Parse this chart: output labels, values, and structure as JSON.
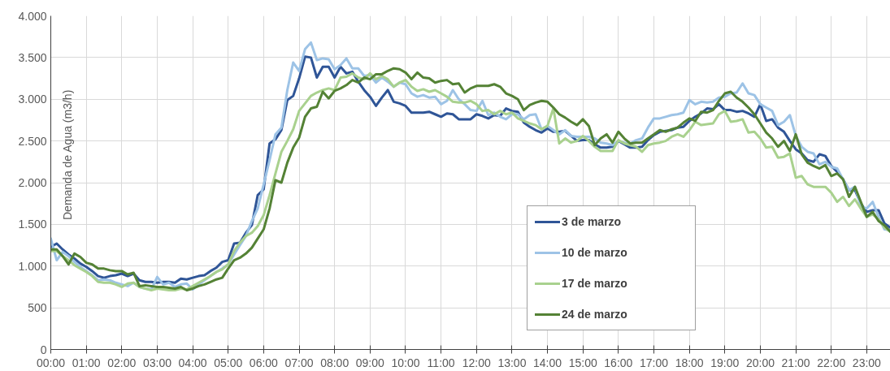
{
  "chart_data": {
    "type": "line",
    "ylabel": "Demanda de Agua (m3/h)",
    "x": [
      0,
      0.167,
      0.333,
      0.5,
      0.667,
      0.833,
      1,
      1.167,
      1.333,
      1.5,
      1.667,
      1.833,
      2,
      2.167,
      2.333,
      2.5,
      2.667,
      2.833,
      3,
      3.167,
      3.333,
      3.5,
      3.667,
      3.833,
      4,
      4.167,
      4.333,
      4.5,
      4.667,
      4.833,
      5,
      5.167,
      5.333,
      5.5,
      5.667,
      5.833,
      6,
      6.167,
      6.333,
      6.5,
      6.667,
      6.833,
      7,
      7.167,
      7.333,
      7.5,
      7.667,
      7.833,
      8,
      8.167,
      8.333,
      8.5,
      8.667,
      8.833,
      9,
      9.167,
      9.333,
      9.5,
      9.667,
      9.833,
      10,
      10.167,
      10.333,
      10.5,
      10.667,
      10.833,
      11,
      11.167,
      11.333,
      11.5,
      11.667,
      11.833,
      12,
      12.167,
      12.333,
      12.5,
      12.667,
      12.833,
      13,
      13.167,
      13.333,
      13.5,
      13.667,
      13.833,
      14,
      14.167,
      14.333,
      14.5,
      14.667,
      14.833,
      15,
      15.167,
      15.333,
      15.5,
      15.667,
      15.833,
      16,
      16.167,
      16.333,
      16.5,
      16.667,
      16.833,
      17,
      17.167,
      17.333,
      17.5,
      17.667,
      17.833,
      18,
      18.167,
      18.333,
      18.5,
      18.667,
      18.833,
      19,
      19.167,
      19.333,
      19.5,
      19.667,
      19.833,
      20,
      20.167,
      20.333,
      20.5,
      20.667,
      20.833,
      21,
      21.167,
      21.333,
      21.5,
      21.667,
      21.833,
      22,
      22.167,
      22.333,
      22.5,
      22.667,
      22.833,
      23,
      23.167,
      23.333,
      23.5,
      23.667
    ],
    "series": [
      {
        "name": "3 de marzo",
        "color": "#2f5597",
        "values": [
          1230,
          1270,
          1200,
          1140,
          1090,
          1030,
          990,
          940,
          880,
          860,
          880,
          890,
          910,
          880,
          910,
          830,
          810,
          810,
          800,
          810,
          810,
          800,
          850,
          840,
          860,
          880,
          890,
          940,
          980,
          1050,
          1070,
          1270,
          1280,
          1400,
          1490,
          1850,
          1920,
          2470,
          2520,
          2630,
          2990,
          3040,
          3250,
          3510,
          3500,
          3260,
          3390,
          3390,
          3260,
          3390,
          3310,
          3330,
          3210,
          3110,
          3030,
          2920,
          3020,
          3110,
          2970,
          2950,
          2920,
          2840,
          2840,
          2840,
          2850,
          2820,
          2790,
          2830,
          2820,
          2760,
          2760,
          2760,
          2820,
          2800,
          2770,
          2810,
          2800,
          2890,
          2860,
          2850,
          2720,
          2670,
          2630,
          2600,
          2650,
          2610,
          2610,
          2620,
          2560,
          2500,
          2510,
          2510,
          2460,
          2420,
          2420,
          2430,
          2500,
          2460,
          2420,
          2420,
          2430,
          2510,
          2570,
          2610,
          2620,
          2630,
          2660,
          2670,
          2740,
          2790,
          2830,
          2890,
          2880,
          2940,
          2870,
          2870,
          2850,
          2860,
          2830,
          2790,
          2940,
          2740,
          2760,
          2660,
          2610,
          2500,
          2400,
          2350,
          2270,
          2250,
          2340,
          2320,
          2200,
          2130,
          2040,
          1910,
          1910,
          1750,
          1650,
          1670,
          1670,
          1510,
          1460
        ]
      },
      {
        "name": "10 de marzo",
        "color": "#9dc3e6",
        "values": [
          1330,
          1070,
          1170,
          1120,
          1050,
          990,
          940,
          890,
          830,
          840,
          830,
          800,
          780,
          760,
          800,
          750,
          730,
          720,
          870,
          780,
          800,
          750,
          780,
          790,
          720,
          780,
          830,
          880,
          930,
          970,
          1020,
          1140,
          1250,
          1360,
          1540,
          1690,
          1980,
          2270,
          2580,
          2660,
          3110,
          3440,
          3340,
          3600,
          3680,
          3470,
          3490,
          3480,
          3360,
          3410,
          3490,
          3370,
          3370,
          3280,
          3290,
          3200,
          3260,
          3210,
          3150,
          3200,
          3180,
          3070,
          3030,
          3050,
          3020,
          3030,
          2940,
          2980,
          3110,
          3000,
          2940,
          2870,
          2860,
          2980,
          2810,
          2840,
          2790,
          2760,
          2820,
          2820,
          2760,
          2810,
          2820,
          2640,
          2680,
          2630,
          2580,
          2630,
          2560,
          2550,
          2550,
          2550,
          2530,
          2480,
          2470,
          2450,
          2500,
          2480,
          2470,
          2510,
          2530,
          2660,
          2770,
          2770,
          2790,
          2810,
          2820,
          2840,
          2990,
          2940,
          2970,
          2960,
          2970,
          3020,
          3030,
          3070,
          3080,
          3190,
          3070,
          3050,
          2940,
          2900,
          2860,
          2690,
          2730,
          2810,
          2560,
          2430,
          2370,
          2350,
          2220,
          2250,
          2190,
          2170,
          2040,
          1910,
          1950,
          1720,
          1690,
          1770,
          1590,
          1440,
          1430
        ]
      },
      {
        "name": "17 de marzo",
        "color": "#a9d18e",
        "values": [
          1180,
          1180,
          1120,
          1070,
          1010,
          970,
          930,
          880,
          810,
          800,
          800,
          780,
          750,
          790,
          800,
          750,
          730,
          710,
          730,
          720,
          710,
          710,
          730,
          720,
          760,
          800,
          840,
          880,
          930,
          960,
          1020,
          1180,
          1280,
          1360,
          1400,
          1480,
          1610,
          1850,
          2110,
          2370,
          2500,
          2640,
          2860,
          2950,
          3040,
          3080,
          3110,
          3130,
          3110,
          3260,
          3270,
          3310,
          3260,
          3240,
          3310,
          3240,
          3280,
          3240,
          3150,
          3200,
          3230,
          3150,
          3100,
          3120,
          3090,
          3110,
          3070,
          3030,
          2970,
          2960,
          2960,
          2980,
          2940,
          2860,
          2870,
          2820,
          2860,
          2820,
          2840,
          2770,
          2740,
          2710,
          2690,
          2640,
          2680,
          2890,
          2470,
          2530,
          2480,
          2500,
          2560,
          2500,
          2430,
          2380,
          2380,
          2380,
          2510,
          2470,
          2450,
          2430,
          2370,
          2450,
          2470,
          2480,
          2500,
          2550,
          2580,
          2550,
          2630,
          2730,
          2690,
          2700,
          2710,
          2820,
          2860,
          2730,
          2740,
          2760,
          2600,
          2610,
          2530,
          2420,
          2430,
          2300,
          2310,
          2350,
          2060,
          2080,
          1980,
          1950,
          1950,
          1950,
          1880,
          1770,
          1830,
          1720,
          1800,
          1690,
          1590,
          1620,
          1560,
          1460,
          1410
        ]
      },
      {
        "name": "24 de marzo",
        "color": "#548235",
        "values": [
          1200,
          1200,
          1120,
          1020,
          1150,
          1110,
          1040,
          1020,
          970,
          970,
          950,
          940,
          940,
          900,
          920,
          760,
          770,
          760,
          750,
          750,
          740,
          730,
          750,
          710,
          730,
          760,
          780,
          810,
          840,
          860,
          970,
          1070,
          1100,
          1150,
          1220,
          1330,
          1440,
          1690,
          2030,
          2000,
          2240,
          2420,
          2540,
          2790,
          2890,
          2910,
          3090,
          3010,
          3100,
          3130,
          3170,
          3230,
          3200,
          3260,
          3240,
          3300,
          3300,
          3340,
          3370,
          3360,
          3320,
          3240,
          3320,
          3260,
          3250,
          3200,
          3220,
          3230,
          3180,
          3190,
          3080,
          3130,
          3160,
          3160,
          3160,
          3180,
          3150,
          3070,
          3040,
          3000,
          2870,
          2930,
          2960,
          2980,
          2970,
          2900,
          2820,
          2780,
          2730,
          2690,
          2760,
          2680,
          2450,
          2530,
          2580,
          2480,
          2610,
          2530,
          2470,
          2480,
          2480,
          2530,
          2580,
          2630,
          2610,
          2640,
          2660,
          2720,
          2770,
          2740,
          2850,
          2840,
          2870,
          2980,
          3070,
          3090,
          3020,
          2970,
          2900,
          2820,
          2710,
          2600,
          2530,
          2430,
          2500,
          2380,
          2580,
          2340,
          2240,
          2200,
          2170,
          2210,
          2080,
          2110,
          2040,
          1830,
          1950,
          1770,
          1590,
          1650,
          1540,
          1490,
          1410
        ]
      }
    ],
    "xlim": [
      0,
      23.667
    ],
    "xticks": [
      {
        "value": 0,
        "label": "00:00"
      },
      {
        "value": 1,
        "label": "01:00"
      },
      {
        "value": 2,
        "label": "02:00"
      },
      {
        "value": 3,
        "label": "03:00"
      },
      {
        "value": 4,
        "label": "04:00"
      },
      {
        "value": 5,
        "label": "05:00"
      },
      {
        "value": 6,
        "label": "06:00"
      },
      {
        "value": 7,
        "label": "07:00"
      },
      {
        "value": 8,
        "label": "08:00"
      },
      {
        "value": 9,
        "label": "09:00"
      },
      {
        "value": 10,
        "label": "10:00"
      },
      {
        "value": 11,
        "label": "11:00"
      },
      {
        "value": 12,
        "label": "12:00"
      },
      {
        "value": 13,
        "label": "13:00"
      },
      {
        "value": 14,
        "label": "14:00"
      },
      {
        "value": 15,
        "label": "15:00"
      },
      {
        "value": 16,
        "label": "16:00"
      },
      {
        "value": 17,
        "label": "17:00"
      },
      {
        "value": 18,
        "label": "18:00"
      },
      {
        "value": 19,
        "label": "19:00"
      },
      {
        "value": 20,
        "label": "20:00"
      },
      {
        "value": 21,
        "label": "21:00"
      },
      {
        "value": 22,
        "label": "22:00"
      },
      {
        "value": 23,
        "label": "23:00"
      }
    ],
    "ylim": [
      0,
      4000
    ],
    "yticks": [
      0,
      500,
      {
        "value": 1000,
        "label": "1.000"
      },
      {
        "value": 1500,
        "label": "1.500"
      },
      {
        "value": 2000,
        "label": "2.000"
      },
      {
        "value": 2500,
        "label": "2.500"
      },
      {
        "value": 3000,
        "label": "3.000"
      },
      {
        "value": 3500,
        "label": "3.500"
      },
      {
        "value": 4000,
        "label": "4.000"
      }
    ],
    "grid": true,
    "legend": "bottom right"
  }
}
